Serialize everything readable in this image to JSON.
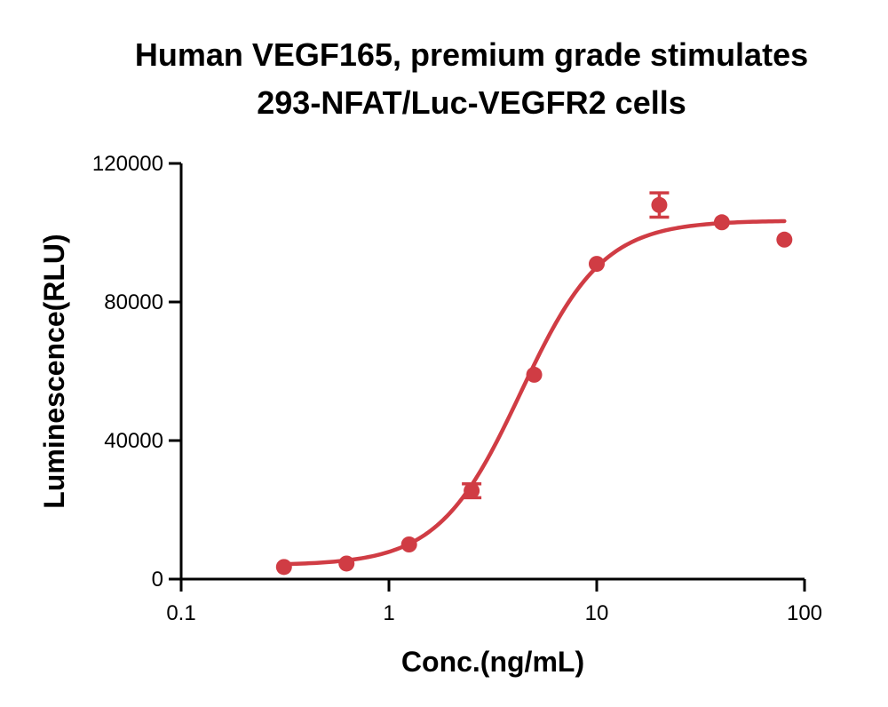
{
  "chart_data": {
    "type": "scatter",
    "title": "Human VEGF165, premium grade stimulates",
    "subtitle": "293-NFAT/Luc-VEGFR2 cells",
    "xlabel": "Conc.(ng/mL)",
    "ylabel": "Luminescence(RLU)",
    "xscale": "log",
    "xlim": [
      0.1,
      100
    ],
    "ylim": [
      0,
      120000
    ],
    "x_ticks": [
      0.1,
      1,
      10,
      100
    ],
    "x_tick_labels": [
      "0.1",
      "1",
      "10",
      "100"
    ],
    "y_ticks": [
      0,
      40000,
      80000,
      120000
    ],
    "y_tick_labels": [
      "0",
      "40000",
      "80000",
      "120000"
    ],
    "grid": false,
    "legend": "none",
    "color": "#d03c44",
    "series": [
      {
        "x": [
          0.3125,
          0.625,
          1.25,
          2.5,
          5,
          10,
          20,
          40,
          80
        ],
        "y": [
          3500,
          4500,
          10000,
          25500,
          59000,
          91000,
          108000,
          103000,
          98000
        ],
        "error": [
          0,
          0,
          0,
          2000,
          0,
          0,
          3500,
          0,
          0
        ],
        "fit": {
          "model": "4PL",
          "bottom": 4000,
          "top": 103500,
          "ec50": 4.3,
          "hill": 2.2
        }
      }
    ]
  }
}
